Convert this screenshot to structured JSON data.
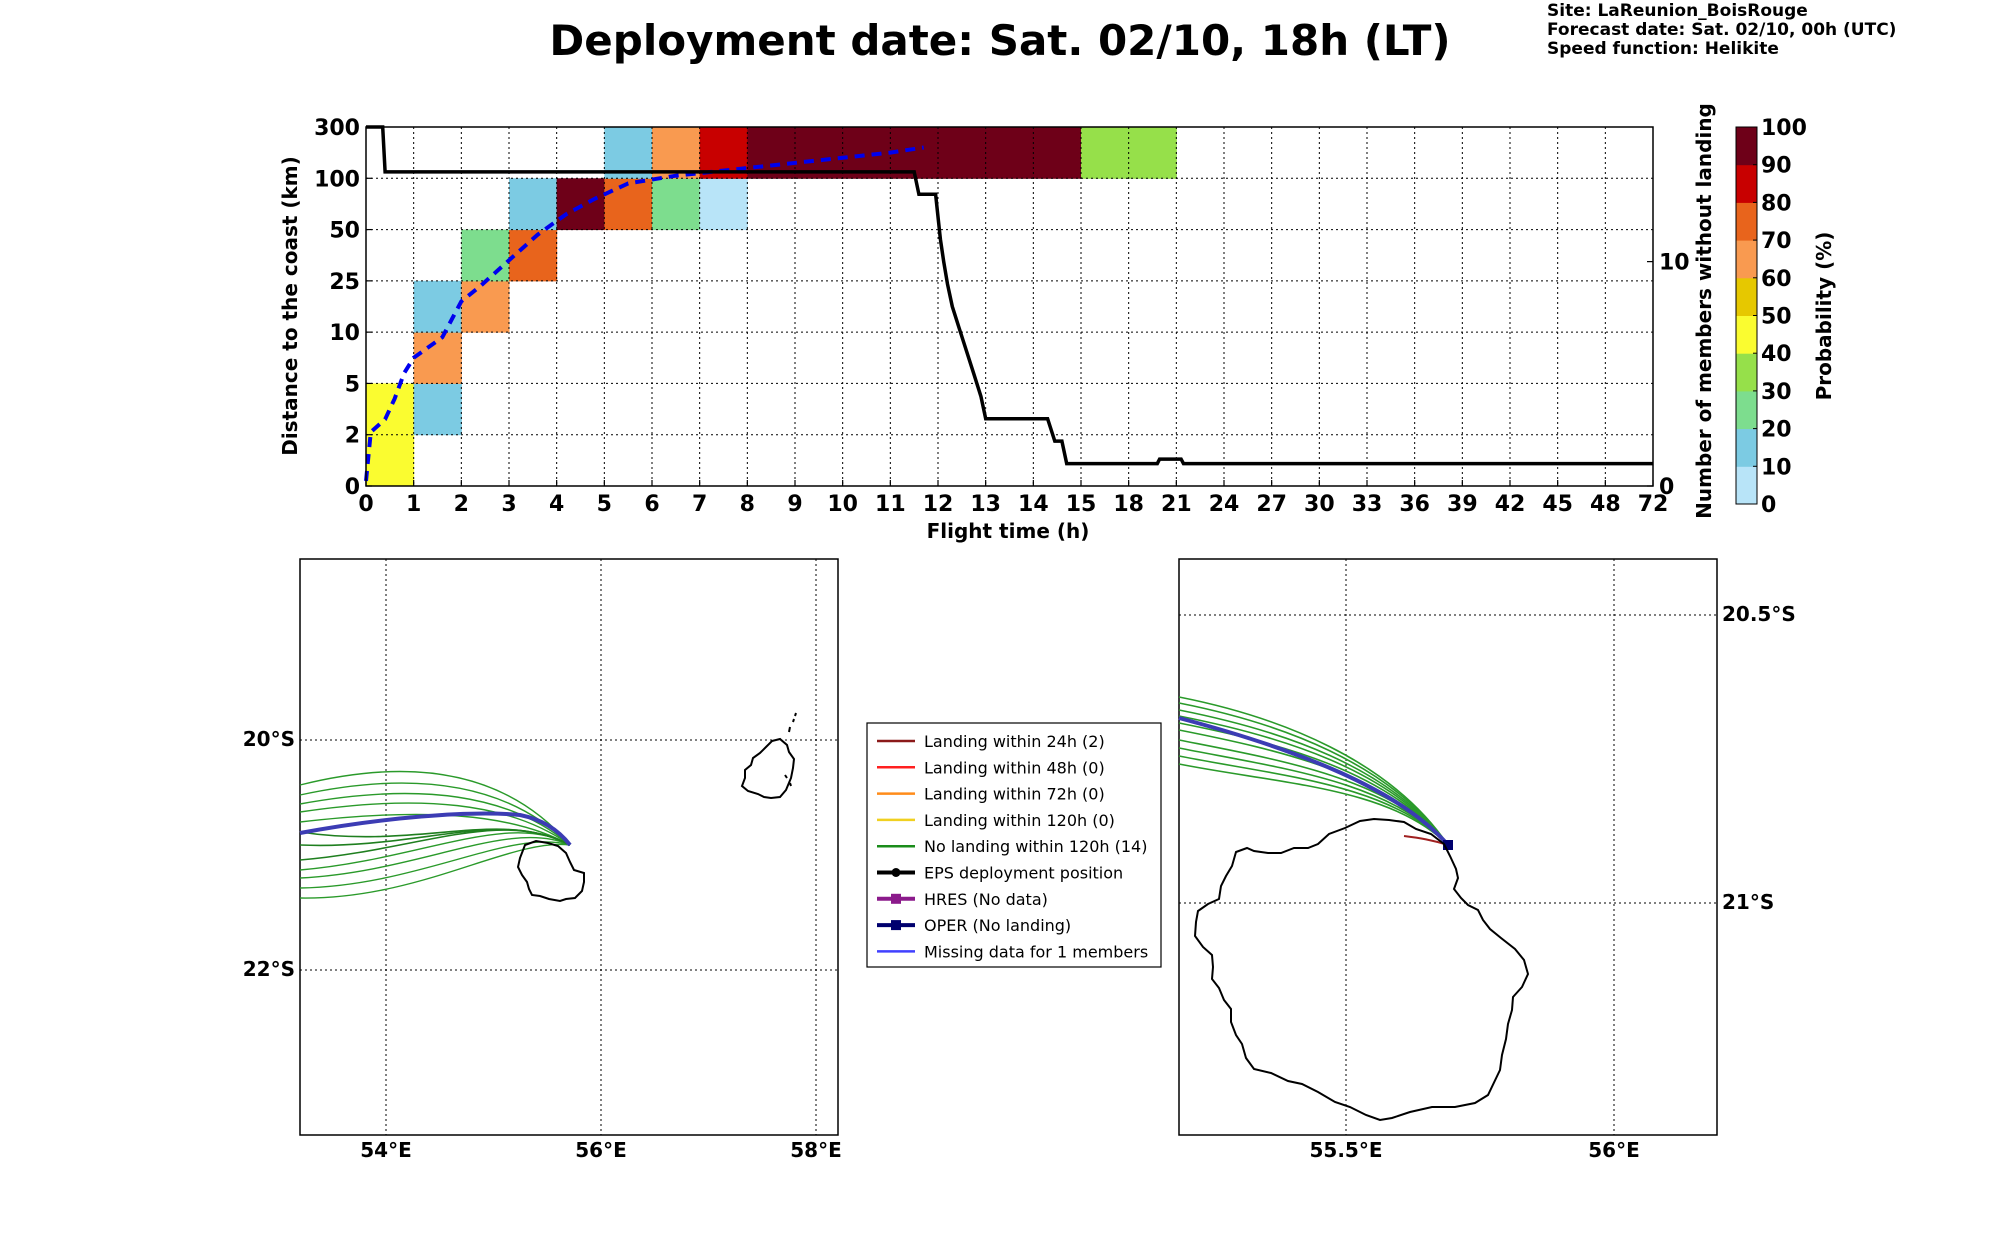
{
  "title": "Deployment date: Sat. 02/10, 18h (LT)",
  "header": {
    "site": "Site: LaReunion_BoisRouge",
    "forecast": "Forecast date: Sat. 02/10, 00h (UTC)",
    "speed": "Speed function: Helikite"
  },
  "chart_data": [
    {
      "type": "heatmap",
      "xlabel": "Flight time (h)",
      "ylabel": "Distance to the coast (km)",
      "y2label": "Number of members without landing",
      "x_ticks": [
        "0",
        "1",
        "2",
        "3",
        "4",
        "5",
        "6",
        "7",
        "8",
        "9",
        "10",
        "11",
        "12",
        "13",
        "14",
        "15",
        "18",
        "21",
        "24",
        "27",
        "30",
        "33",
        "36",
        "39",
        "42",
        "45",
        "48",
        "72"
      ],
      "y_ticks": [
        "0",
        "2",
        "5",
        "10",
        "25",
        "50",
        "100",
        "300"
      ],
      "y2_ticks": [
        "0",
        "10"
      ],
      "y2lim": [
        0,
        16
      ],
      "colorbar": {
        "label": "Probability (%)",
        "ticks": [
          "0",
          "10",
          "20",
          "30",
          "40",
          "50",
          "60",
          "70",
          "80",
          "90",
          "100"
        ],
        "colors": [
          "#b8e4f8",
          "#7ccbe3",
          "#7ddd8e",
          "#96e04a",
          "#fafc30",
          "#e6c800",
          "#f99a50",
          "#e8641c",
          "#c80000",
          "#6e0018"
        ]
      },
      "cells": [
        {
          "x": 0,
          "band": 0,
          "prob": 45
        },
        {
          "x": 0,
          "band": 1,
          "prob": 45
        },
        {
          "x": 1,
          "band": 1,
          "prob": 15
        },
        {
          "x": 1,
          "band": 2,
          "prob": 65
        },
        {
          "x": 1,
          "band": 3,
          "prob": 15
        },
        {
          "x": 2,
          "band": 3,
          "prob": 65
        },
        {
          "x": 2,
          "band": 4,
          "prob": 25
        },
        {
          "x": 3,
          "band": 4,
          "prob": 75
        },
        {
          "x": 3,
          "band": 5,
          "prob": 15
        },
        {
          "x": 4,
          "band": 5,
          "prob": 95
        },
        {
          "x": 5,
          "band": 5,
          "prob": 75
        },
        {
          "x": 5,
          "band": 6,
          "prob": 15
        },
        {
          "x": 6,
          "band": 5,
          "prob": 25
        },
        {
          "x": 6,
          "band": 6,
          "prob": 65
        },
        {
          "x": 7,
          "band": 5,
          "prob": 5
        },
        {
          "x": 7,
          "band": 6,
          "prob": 85
        },
        {
          "x": 8,
          "band": 6,
          "prob": 95
        },
        {
          "x": 9,
          "band": 6,
          "prob": 95
        },
        {
          "x": 10,
          "band": 6,
          "prob": 95
        },
        {
          "x": 11,
          "band": 6,
          "prob": 95
        },
        {
          "x": 12,
          "band": 6,
          "prob": 95
        },
        {
          "x": 13,
          "band": 6,
          "prob": 95
        },
        {
          "x": 14,
          "band": 6,
          "prob": 95
        },
        {
          "x": 15,
          "band": 6,
          "prob": 35
        },
        {
          "x": 16,
          "band": 6,
          "prob": 35
        }
      ],
      "members_without_landing": [
        [
          0,
          16
        ],
        [
          0.35,
          16
        ],
        [
          0.4,
          14
        ],
        [
          11.5,
          14
        ],
        [
          11.6,
          13
        ],
        [
          11.95,
          13
        ],
        [
          12.05,
          11
        ],
        [
          12.12,
          10
        ],
        [
          12.2,
          9
        ],
        [
          12.3,
          8
        ],
        [
          12.45,
          7
        ],
        [
          12.6,
          6
        ],
        [
          12.75,
          5
        ],
        [
          12.9,
          4
        ],
        [
          13.0,
          3
        ],
        [
          13.3,
          3
        ],
        [
          14.3,
          3
        ],
        [
          14.45,
          2
        ],
        [
          14.6,
          2
        ],
        [
          14.7,
          1
        ],
        [
          16,
          1
        ],
        [
          16.6,
          1
        ],
        [
          16.65,
          1.2
        ],
        [
          17.1,
          1.2
        ],
        [
          17.15,
          1
        ],
        [
          27,
          1
        ]
      ],
      "median_distance": [
        [
          0,
          0.1
        ],
        [
          0.1,
          1.05
        ],
        [
          0.4,
          1.3
        ],
        [
          0.6,
          1.7
        ],
        [
          0.8,
          2.2
        ],
        [
          1.0,
          2.5
        ],
        [
          1.3,
          2.7
        ],
        [
          1.6,
          2.9
        ],
        [
          2.0,
          3.6
        ],
        [
          2.4,
          3.9
        ],
        [
          3.0,
          4.4
        ],
        [
          3.6,
          4.9
        ],
        [
          4.2,
          5.3
        ],
        [
          4.8,
          5.6
        ],
        [
          5.5,
          5.9
        ],
        [
          6.5,
          6.05
        ],
        [
          7.5,
          6.15
        ],
        [
          8.5,
          6.25
        ],
        [
          9.5,
          6.35
        ],
        [
          10.5,
          6.45
        ],
        [
          11.0,
          6.5
        ],
        [
          11.7,
          6.6
        ]
      ]
    },
    {
      "type": "map",
      "x_ticks": [
        "54°E",
        "56°E",
        "58°E"
      ],
      "y_ticks": [
        "20°S",
        "22°S"
      ]
    },
    {
      "type": "map",
      "x_ticks": [
        "55.5°E",
        "56°E"
      ],
      "y_ticks": [
        "20.5°S",
        "21°S"
      ]
    }
  ],
  "legend": [
    {
      "label": "Landing within 24h (2)",
      "color": "#8b1a1a",
      "marker": "none"
    },
    {
      "label": "Landing within 48h (0)",
      "color": "#ff2020",
      "marker": "none"
    },
    {
      "label": "Landing within 72h (0)",
      "color": "#ff8c1a",
      "marker": "none"
    },
    {
      "label": "Landing within 120h (0)",
      "color": "#f0d020",
      "marker": "none"
    },
    {
      "label": "No landing within 120h (14)",
      "color": "#1a8c1a",
      "marker": "none"
    },
    {
      "label": "EPS deployment position",
      "color": "#000000",
      "marker": "circle"
    },
    {
      "label": "HRES (No data)",
      "color": "#8b1a8b",
      "marker": "square"
    },
    {
      "label": "OPER (No landing)",
      "color": "#00006e",
      "marker": "square"
    },
    {
      "label": "Missing data for 1 members",
      "color": "#4040ff",
      "marker": "none"
    }
  ]
}
